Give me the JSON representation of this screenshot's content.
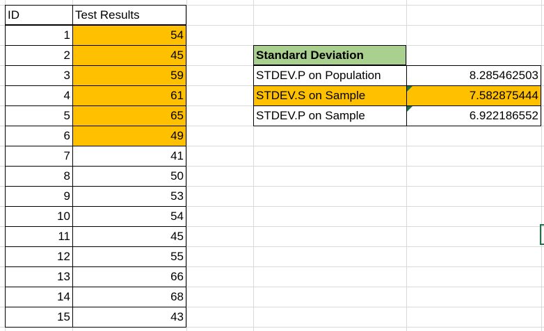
{
  "sheet": {
    "headers": {
      "id": "ID",
      "results": "Test Results"
    },
    "rows": [
      {
        "id": "1",
        "value": "54",
        "highlight": true
      },
      {
        "id": "2",
        "value": "45",
        "highlight": true
      },
      {
        "id": "3",
        "value": "59",
        "highlight": true
      },
      {
        "id": "4",
        "value": "61",
        "highlight": true
      },
      {
        "id": "5",
        "value": "65",
        "highlight": true
      },
      {
        "id": "6",
        "value": "49",
        "highlight": true
      },
      {
        "id": "7",
        "value": "41",
        "highlight": false
      },
      {
        "id": "8",
        "value": "50",
        "highlight": false
      },
      {
        "id": "9",
        "value": "53",
        "highlight": false
      },
      {
        "id": "10",
        "value": "54",
        "highlight": false
      },
      {
        "id": "11",
        "value": "45",
        "highlight": false
      },
      {
        "id": "12",
        "value": "55",
        "highlight": false
      },
      {
        "id": "13",
        "value": "66",
        "highlight": false
      },
      {
        "id": "14",
        "value": "68",
        "highlight": false
      },
      {
        "id": "15",
        "value": "43",
        "highlight": false
      }
    ]
  },
  "summary": {
    "title": "Standard Deviation",
    "rows": [
      {
        "label": "STDEV.P on Population",
        "value": "8.285462503",
        "highlight": false,
        "warning": false
      },
      {
        "label": "STDEV.S on Sample",
        "value": "7.582875444",
        "highlight": true,
        "warning": true
      },
      {
        "label": "STDEV.P on Sample",
        "value": "6.922186552",
        "highlight": false,
        "warning": true
      }
    ]
  },
  "colors": {
    "highlight": "#ffc000",
    "header_green": "#a9d08e",
    "gridline": "#d9d9d9",
    "error_indicator": "#1e7145"
  }
}
